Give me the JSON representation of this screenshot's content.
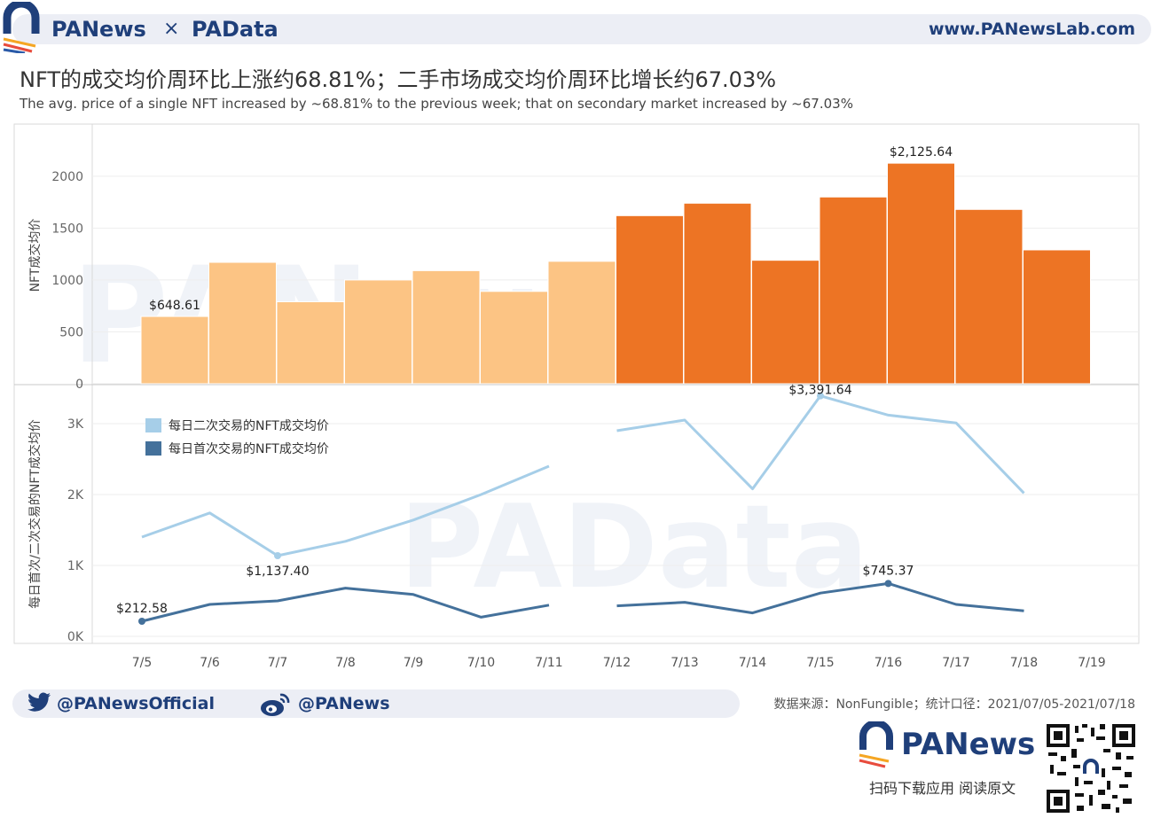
{
  "header": {
    "brand_left": "PANews",
    "brand_times": "×",
    "brand_right": "PAData",
    "website": "www.PANewsLab.com"
  },
  "title": "NFT的成交均价周环比上涨约68.81%；二手市场成交均价周环比增长约67.03%",
  "subtitle": "The avg. price of a single NFT increased by ~68.81% to the previous week; that on secondary market increased by ~67.03%",
  "chart_data": [
    {
      "type": "bar",
      "ylabel": "NFT成交均价",
      "ylim": [
        0,
        2400
      ],
      "yticks": [
        0,
        500,
        1000,
        1500,
        2000
      ],
      "ytick_labels": [
        "0",
        "500",
        "1000",
        "1500",
        "2000"
      ],
      "categories": [
        "7/5",
        "7/6",
        "7/7",
        "7/8",
        "7/9",
        "7/10",
        "7/11",
        "7/12",
        "7/13",
        "7/14",
        "7/15",
        "7/16",
        "7/17",
        "7/18",
        "7/19"
      ],
      "values": [
        648.61,
        1170,
        790,
        1000,
        1090,
        890,
        1180,
        1620,
        1740,
        1190,
        1800,
        2125.64,
        1680,
        1290,
        null
      ],
      "colors": [
        "#fcc484",
        "#fcc484",
        "#fcc484",
        "#fcc484",
        "#fcc484",
        "#fcc484",
        "#fcc484",
        "#ed7424",
        "#ed7424",
        "#ed7424",
        "#ed7424",
        "#ed7424",
        "#ed7424",
        "#ed7424",
        "#ed7424"
      ],
      "annotations": [
        {
          "index": 0,
          "label": "$648.61"
        },
        {
          "index": 11,
          "label": "$2,125.64"
        }
      ]
    },
    {
      "type": "line",
      "ylabel": "每日首次/二次交易的NFT成交均价",
      "ylim": [
        -100,
        3500
      ],
      "yticks": [
        0,
        1000,
        2000,
        3000
      ],
      "ytick_labels": [
        "0K",
        "1K",
        "2K",
        "3K"
      ],
      "x": [
        "7/5",
        "7/6",
        "7/7",
        "7/8",
        "7/9",
        "7/10",
        "7/11",
        "7/12",
        "7/13",
        "7/14",
        "7/15",
        "7/16",
        "7/17",
        "7/18",
        "7/19"
      ],
      "series": [
        {
          "name": "每日二次交易的NFT成交均价",
          "color": "#a6cee8",
          "values": [
            1400,
            1740,
            1137.4,
            1340,
            1640,
            2000,
            2400,
            null,
            3050,
            2080,
            3391.64,
            3120,
            3010,
            2020,
            null
          ],
          "values_segment_fix": [
            null,
            null,
            null,
            null,
            null,
            null,
            null,
            2900,
            null,
            null,
            null,
            null,
            null,
            null,
            null
          ]
        },
        {
          "name": "每日首次交易的NFT成交均价",
          "color": "#44719b",
          "values": [
            212.58,
            450,
            500,
            680,
            590,
            270,
            440,
            null,
            480,
            330,
            610,
            745.37,
            450,
            360,
            null
          ],
          "values_segment_fix": [
            null,
            null,
            null,
            null,
            null,
            null,
            null,
            430,
            null,
            null,
            null,
            null,
            null,
            null,
            null
          ]
        }
      ],
      "annotations": [
        {
          "series": 0,
          "index": 2,
          "label": "$1,137.40"
        },
        {
          "series": 0,
          "index": 10,
          "label": "$3,391.64"
        },
        {
          "series": 1,
          "index": 0,
          "label": "$212.58"
        },
        {
          "series": 1,
          "index": 11,
          "label": "$745.37"
        }
      ]
    }
  ],
  "footer": {
    "twitter": "@PANewsOfficial",
    "weibo": "@PANews",
    "source": "数据来源：NonFungible；统计口径：2021/07/05-2021/07/18",
    "brand": "PANews",
    "scan_text": "扫码下载应用  阅读原文"
  },
  "colors": {
    "brand_blue": "#1f3f7a",
    "bar_light": "#fcc484",
    "bar_dark": "#ed7424",
    "line_light": "#a6cee8",
    "line_dark": "#44719b"
  }
}
